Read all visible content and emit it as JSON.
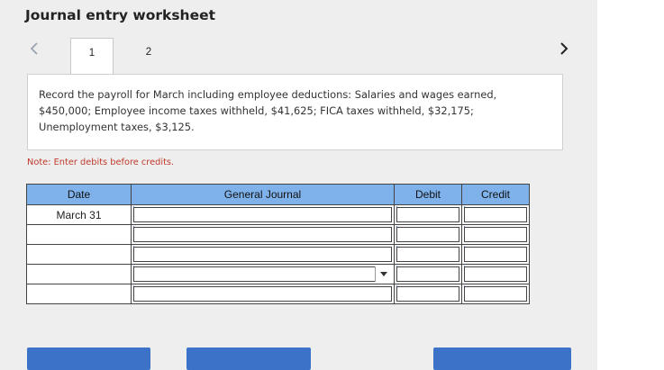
{
  "header": {
    "title": "Journal entry worksheet"
  },
  "tabs": [
    {
      "label": "1"
    },
    {
      "label": "2"
    }
  ],
  "question": {
    "text": "Record the payroll for March including employee deductions: Salaries and wages earned, $450,000; Employee income taxes withheld, $41,625; FICA taxes withheld, $32,175; Unemployment taxes, $3,125."
  },
  "note": "Note: Enter debits before credits.",
  "journal": {
    "columns": [
      "Date",
      "General Journal",
      "Debit",
      "Credit"
    ],
    "rows": [
      {
        "date": "March 31",
        "account": "",
        "debit": "",
        "credit": ""
      },
      {
        "date": "",
        "account": "",
        "debit": "",
        "credit": ""
      },
      {
        "date": "",
        "account": "",
        "debit": "",
        "credit": ""
      },
      {
        "date": "",
        "account": "",
        "debit": "",
        "credit": ""
      },
      {
        "date": "",
        "account": "",
        "debit": "",
        "credit": ""
      },
      {
        "date": "",
        "account": "",
        "debit": "",
        "credit": ""
      }
    ]
  },
  "colors": {
    "header_blue": "#7fb1ea",
    "button_blue": "#3c73c8",
    "note_red": "#c0392b",
    "flag_blue": "#2a6fd1"
  },
  "icons": {
    "prev": "chevron-left-icon",
    "next": "chevron-right-icon",
    "dropdown": "caret-down-icon"
  }
}
